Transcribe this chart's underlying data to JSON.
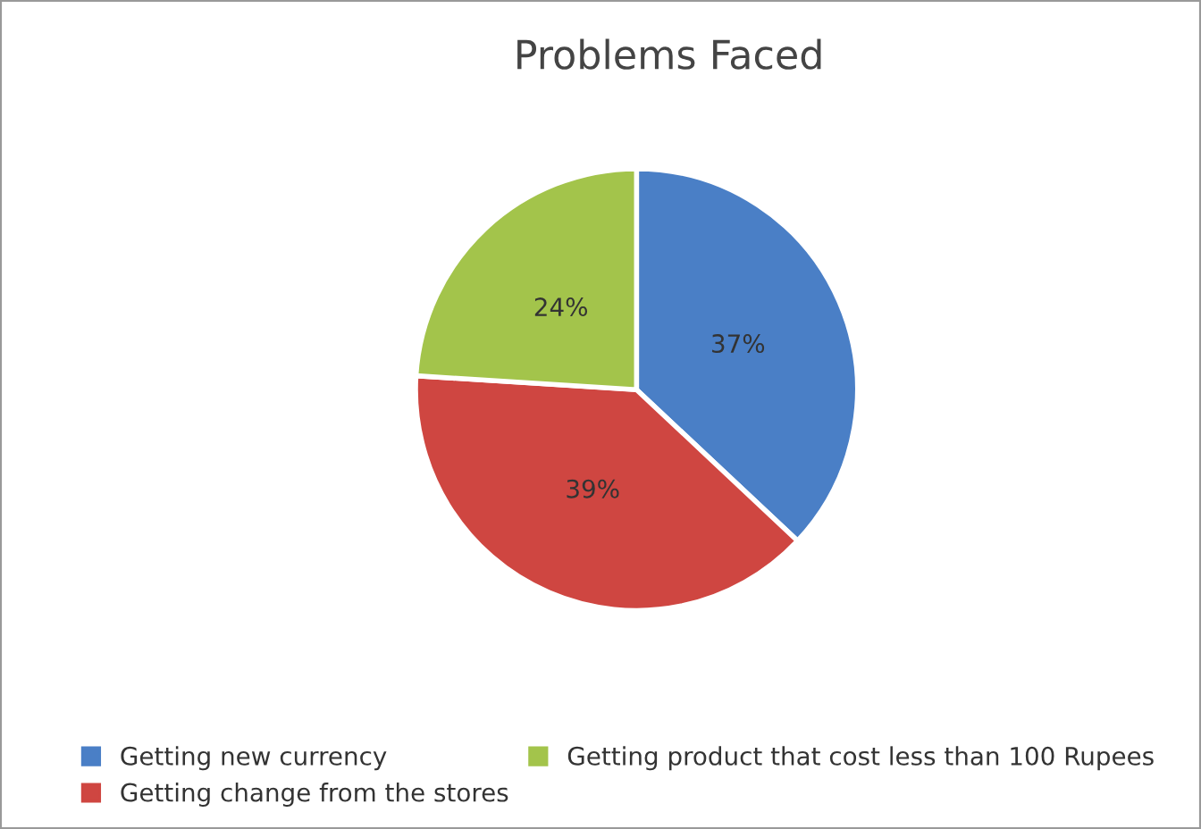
{
  "chart_data": {
    "type": "pie",
    "title": "Problems Faced",
    "categories": [
      "Getting new currency",
      "Getting change from the stores",
      "Getting product that cost less than 100 Rupees"
    ],
    "values": [
      37,
      39,
      24
    ],
    "colors": [
      "#4a7fc6",
      "#cf4641",
      "#a3c44b"
    ],
    "value_labels": [
      "37%",
      "39%",
      "24%"
    ],
    "legend": "bottom"
  }
}
